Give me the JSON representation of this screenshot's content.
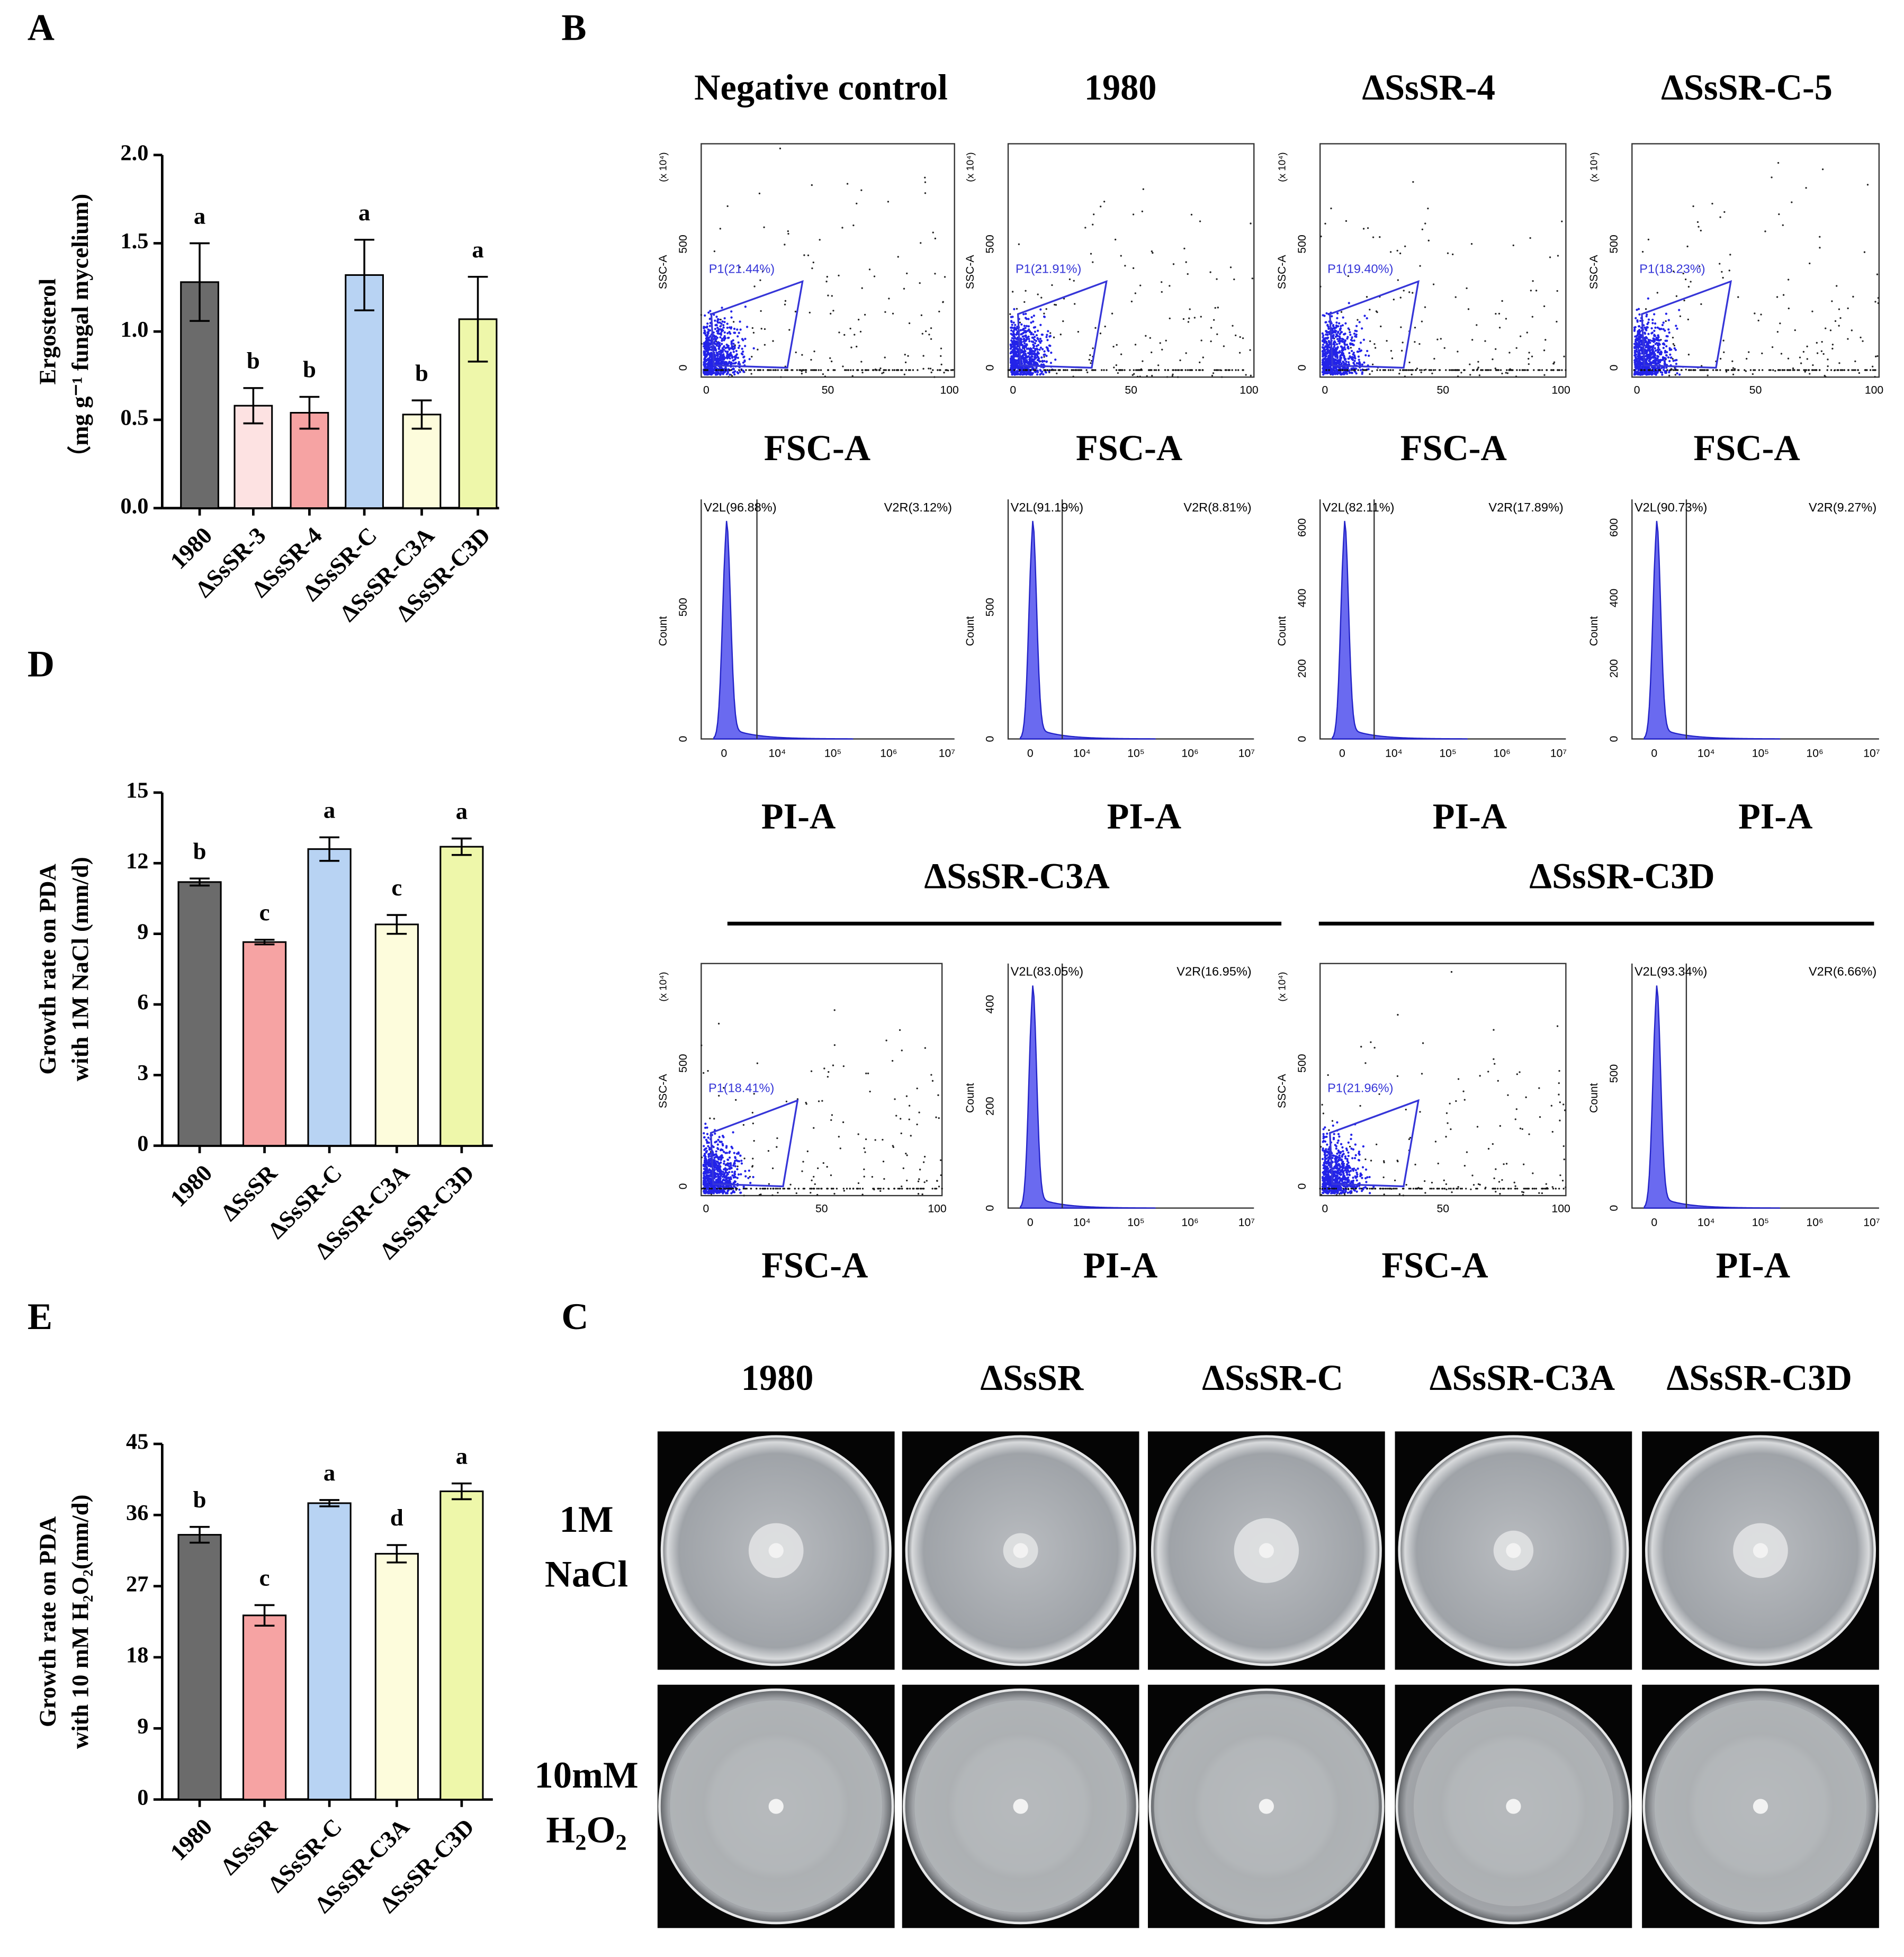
{
  "chart_data": [
    {
      "type": "bar",
      "panel": "A",
      "ylabel": [
        "Ergosterol",
        "（mg g⁻¹ fungal mycelium)"
      ],
      "categories": [
        "1980",
        "ΔSsSR-3",
        "ΔSsSR-4",
        "ΔSsSR-C",
        "ΔSsSR-C3A",
        "ΔSsSR-C3D"
      ],
      "values": [
        1.28,
        0.58,
        0.54,
        1.32,
        0.53,
        1.07
      ],
      "errors": [
        0.22,
        0.1,
        0.09,
        0.2,
        0.08,
        0.24
      ],
      "value_labels": [
        "a",
        "b",
        "b",
        "a",
        "b",
        "a"
      ],
      "colors": [
        "#6b6b6b",
        "#fde2e2",
        "#f6a3a3",
        "#b8d3f3",
        "#fdfcdc",
        "#eef7aa"
      ],
      "ylim": [
        0,
        2
      ],
      "yticks": [
        {
          "value": 0,
          "label": "0.0"
        },
        {
          "value": 0.5,
          "label": "0.5"
        },
        {
          "value": 1,
          "label": "1.0"
        },
        {
          "value": 1.5,
          "label": "1.5"
        },
        {
          "value": 2,
          "label": "2.0"
        }
      ]
    },
    {
      "type": "bar",
      "panel": "D",
      "ylabel": [
        "Growth rate on PDA",
        "with 1M NaCl (mm/d)"
      ],
      "categories": [
        "1980",
        "ΔSsSR",
        "ΔSsSR-C",
        "ΔSsSR-C3A",
        "ΔSsSR-C3D"
      ],
      "values": [
        11.2,
        8.65,
        12.6,
        9.4,
        12.7
      ],
      "errors": [
        0.15,
        0.1,
        0.5,
        0.4,
        0.35
      ],
      "value_labels": [
        "b",
        "c",
        "a",
        "c",
        "a"
      ],
      "colors": [
        "#6b6b6b",
        "#f6a3a3",
        "#b8d3f3",
        "#fdfcdc",
        "#eef7aa"
      ],
      "ylim": [
        0,
        15
      ],
      "yticks": [
        0,
        3,
        6,
        9,
        12,
        15
      ]
    },
    {
      "type": "bar",
      "panel": "E",
      "ylabel": [
        "Growth rate on PDA",
        "with 10 mM H₂O₂(mm/d)"
      ],
      "categories": [
        "1980",
        "ΔSsSR",
        "ΔSsSR-C",
        "ΔSsSR-C3A",
        "ΔSsSR-C3D"
      ],
      "values": [
        33.5,
        23.3,
        37.5,
        31.1,
        39.0
      ],
      "errors": [
        1,
        1.3,
        0.4,
        1.1,
        1
      ],
      "value_labels": [
        "b",
        "c",
        "a",
        "d",
        "a"
      ],
      "colors": [
        "#6b6b6b",
        "#f6a3a3",
        "#b8d3f3",
        "#fdfcdc",
        "#eef7aa"
      ],
      "ylim": [
        0,
        45
      ],
      "yticks": [
        0,
        9,
        18,
        27,
        36,
        45
      ]
    }
  ],
  "flow": {
    "panel": "B",
    "titles": [
      "Negative control",
      "1980",
      "ΔSsSR-4",
      "ΔSsSR-C-5"
    ],
    "group_titles": [
      "ΔSsSR-C3A",
      "ΔSsSR-C3D"
    ],
    "scatter_axis": {
      "xlabel": "FSC-A",
      "ylabel": "SSC-A",
      "exponent": "(x 10⁴)",
      "xticks": [
        0,
        50,
        100
      ],
      "yticks": [
        0,
        500
      ]
    },
    "histogram_axis": {
      "xlabel": "PI-A",
      "ylabel": "Count",
      "xticks": [
        "0",
        "10⁴",
        "10⁵",
        "10⁶",
        "10⁷"
      ]
    },
    "gates": [
      "P1(21.44%)",
      "P1(21.91%)",
      "P1(19.40%)",
      "P1(18.23%)",
      "P1(18.41%)",
      "P1(21.96%)"
    ],
    "histograms": [
      {
        "left": "V2L(96.88%)",
        "right": "V2R(3.12%)",
        "yticks": [
          500
        ]
      },
      {
        "left": "V2L(91.19%)",
        "right": "V2R(8.81%)",
        "yticks": [
          500
        ]
      },
      {
        "left": "V2L(82.11%)",
        "right": "V2R(17.89%)",
        "yticks": [
          200,
          400,
          600
        ]
      },
      {
        "left": "V2L(90.73%)",
        "right": "V2R(9.27%)",
        "yticks": [
          200,
          400,
          600
        ]
      },
      {
        "left": "V2L(83.05%)",
        "right": "V2R(16.95%)",
        "yticks": [
          200,
          400
        ]
      },
      {
        "left": "V2L(93.34%)",
        "right": "V2R(6.66%)",
        "yticks": [
          500
        ]
      }
    ]
  },
  "plates": {
    "panel": "C",
    "strains": [
      "1980",
      "ΔSsSR",
      "ΔSsSR-C",
      "ΔSsSR-C3A",
      "ΔSsSR-C3D"
    ],
    "conditions": [
      [
        "1M",
        "NaCl"
      ],
      [
        "10mM",
        "H₂O₂"
      ]
    ]
  }
}
